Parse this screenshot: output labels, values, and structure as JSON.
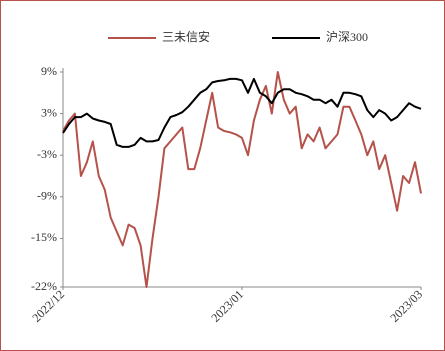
{
  "chart_data": {
    "type": "line",
    "categories": [
      "2022/12",
      null,
      null,
      null,
      null,
      null,
      null,
      null,
      null,
      null,
      null,
      null,
      null,
      null,
      null,
      null,
      null,
      null,
      null,
      null,
      null,
      null,
      null,
      null,
      null,
      null,
      null,
      null,
      null,
      null,
      "2023/01",
      null,
      null,
      null,
      null,
      null,
      null,
      null,
      null,
      null,
      null,
      null,
      null,
      null,
      null,
      null,
      null,
      null,
      null,
      null,
      null,
      null,
      null,
      null,
      null,
      null,
      null,
      null,
      null,
      null,
      "2023/03"
    ],
    "series": [
      {
        "name": "三未信安",
        "color": "#b5524a",
        "values": [
          0.5,
          2,
          3,
          -6,
          -4,
          -1,
          -6,
          -8,
          -12,
          -14,
          -16,
          -13,
          -13.5,
          -16,
          -22,
          -15,
          -9,
          -2,
          -1,
          0,
          1,
          -5,
          -5,
          -2,
          2,
          6,
          1,
          0.5,
          0.3,
          0,
          -0.5,
          -3,
          2,
          5,
          7,
          3,
          9,
          5,
          3,
          4,
          -2,
          0,
          -1,
          1,
          -2,
          -1,
          0,
          4,
          4,
          2,
          0,
          -3,
          -1,
          -5,
          -3,
          -7,
          -11,
          -6,
          -7,
          -4,
          -8.5
        ]
      },
      {
        "name": "沪深300",
        "color": "#000000",
        "values": [
          0.2,
          1.5,
          2.5,
          2.5,
          3,
          2.3,
          2,
          1.8,
          1.5,
          -1.5,
          -1.8,
          -1.8,
          -1.5,
          -0.5,
          -1,
          -1,
          -0.8,
          1,
          2.5,
          2.8,
          3.2,
          4,
          5,
          6,
          6.5,
          7.5,
          7.7,
          7.8,
          8,
          8,
          7.8,
          6,
          8,
          6,
          5.5,
          4.5,
          6,
          6.5,
          6.5,
          6,
          5.8,
          5.5,
          5,
          5,
          4.5,
          5,
          4,
          6,
          6,
          5.8,
          5.5,
          3.5,
          2.5,
          3.5,
          3,
          2,
          2.5,
          3.5,
          4.5,
          4,
          3.7
        ]
      }
    ],
    "ylim": [
      -22,
      9
    ],
    "yticks": [
      {
        "value": 9,
        "label": "9%"
      },
      {
        "value": 3,
        "label": "3%"
      },
      {
        "value": -3,
        "label": "-3%"
      },
      {
        "value": -9,
        "label": "-9%"
      },
      {
        "value": -15,
        "label": "-15%"
      },
      {
        "value": -22,
        "label": "-22%"
      }
    ]
  }
}
